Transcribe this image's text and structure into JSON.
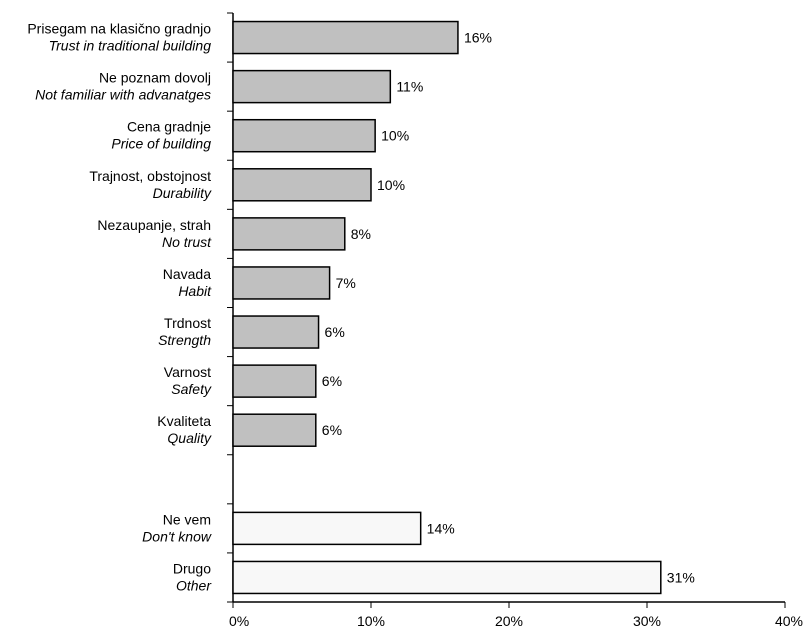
{
  "chart_data": {
    "type": "bar",
    "orientation": "horizontal",
    "title": "",
    "xlabel": "",
    "ylabel": "",
    "xlim": [
      0,
      40
    ],
    "x_ticks": [
      "0%",
      "10%",
      "20%",
      "30%",
      "40%"
    ],
    "grid": false,
    "legend": "none",
    "colors": {
      "group1": "#c0c0c0",
      "group2": "#f8f8f8",
      "stroke": "#000000"
    },
    "categories": [
      {
        "label": "Prisegam na klasično gradnjo",
        "sublabel": "Trust in traditional building",
        "value": 16.3,
        "value_label": "16%",
        "group": 1
      },
      {
        "label": "Ne poznam dovolj",
        "sublabel": "Not familiar with advanatges",
        "value": 11.4,
        "value_label": "11%",
        "group": 1
      },
      {
        "label": "Cena gradnje",
        "sublabel": "Price of building",
        "value": 10.3,
        "value_label": "10%",
        "group": 1
      },
      {
        "label": "Trajnost, obstojnost",
        "sublabel": "Durability",
        "value": 10.0,
        "value_label": "10%",
        "group": 1
      },
      {
        "label": "Nezaupanje, strah",
        "sublabel": "No trust",
        "value": 8.1,
        "value_label": "8%",
        "group": 1
      },
      {
        "label": "Navada",
        "sublabel": "Habit",
        "value": 7.0,
        "value_label": "7%",
        "group": 1
      },
      {
        "label": "Trdnost",
        "sublabel": "Strength",
        "value": 6.2,
        "value_label": "6%",
        "group": 1
      },
      {
        "label": "Varnost",
        "sublabel": "Safety",
        "value": 6.0,
        "value_label": "6%",
        "group": 1
      },
      {
        "label": "Kvaliteta",
        "sublabel": "Quality",
        "value": 6.0,
        "value_label": "6%",
        "group": 1
      },
      {
        "label": "",
        "sublabel": "",
        "value": null,
        "value_label": "",
        "group": 0
      },
      {
        "label": "Ne vem",
        "sublabel": "Don't know",
        "value": 13.6,
        "value_label": "14%",
        "group": 2
      },
      {
        "label": "Drugo",
        "sublabel": "Other",
        "value": 31.0,
        "value_label": "31%",
        "group": 2
      }
    ]
  }
}
